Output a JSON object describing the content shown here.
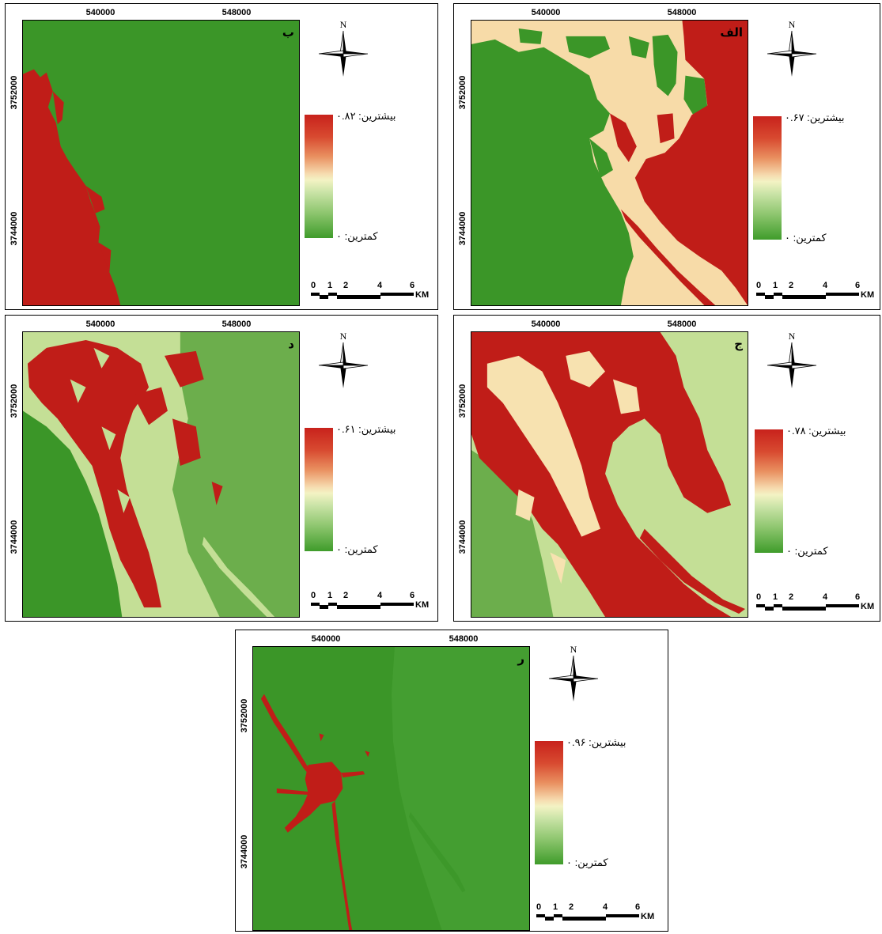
{
  "compass_label": "N",
  "scale_bar": {
    "ticks": [
      "0",
      "1",
      "2",
      "4",
      "6"
    ],
    "unit": "KM"
  },
  "x_ticks": [
    "540000",
    "548000"
  ],
  "y_ticks": [
    "3752000",
    "3744000"
  ],
  "colors": {
    "red": "#c01d18",
    "green_dark": "#3b9628",
    "green_light": "#c4df96",
    "beige": "#f7dba8",
    "green_mid": "#74b554"
  },
  "panels": [
    {
      "id": "b",
      "label": "ب",
      "legend_max": "بیشترین: ۰.۸۲",
      "legend_min": "کمترین: ۰"
    },
    {
      "id": "alef",
      "label": "الف",
      "legend_max": "بیشترین: ۰.۶۷",
      "legend_min": "کمترین: ۰"
    },
    {
      "id": "dal",
      "label": "د",
      "legend_max": "بیشترین: ۰.۶۱",
      "legend_min": "کمترین: ۰"
    },
    {
      "id": "jim",
      "label": "ج",
      "legend_max": "بیشترین: ۰.۷۸",
      "legend_min": "کمترین: ۰"
    },
    {
      "id": "re",
      "label": "ر",
      "legend_max": "بیشترین: ۰.۹۶",
      "legend_min": "کمترین: ۰"
    }
  ]
}
